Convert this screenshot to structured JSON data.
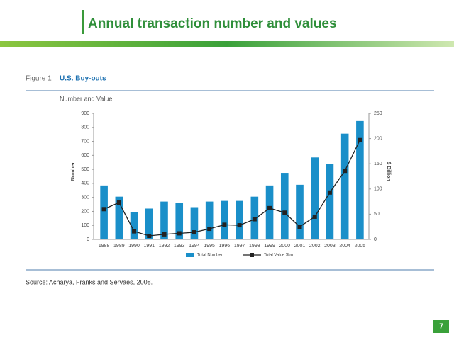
{
  "slide_title": "Annual transaction number and values",
  "page_number": "7",
  "source": "Source: Acharya, Franks and Servaes, 2008.",
  "chart_data": {
    "type": "bar",
    "figure_label": "Figure 1",
    "title": "U.S. Buy-outs",
    "subtitle": "Number and Value",
    "y_label": "Number",
    "y2_label": "$ Billion",
    "categories": [
      "1988",
      "1989",
      "1990",
      "1991",
      "1992",
      "1993",
      "1994",
      "1995",
      "1996",
      "1997",
      "1998",
      "1999",
      "2000",
      "2001",
      "2002",
      "2003",
      "2004",
      "2005"
    ],
    "series": [
      {
        "name": "Total Number",
        "color": "#1a8fc9",
        "values": [
          385,
          305,
          195,
          220,
          270,
          260,
          230,
          270,
          275,
          275,
          305,
          385,
          475,
          390,
          585,
          540,
          755,
          845
        ]
      },
      {
        "name": "Total Value $bn",
        "color": "#222222",
        "axis": "y2",
        "values": [
          60,
          73,
          16,
          7,
          10,
          12,
          14,
          21,
          29,
          28,
          40,
          62,
          53,
          25,
          45,
          93,
          136,
          197
        ]
      }
    ],
    "ylim": [
      0,
      900
    ],
    "yticks": [
      0,
      100,
      200,
      300,
      400,
      500,
      600,
      700,
      800,
      900
    ],
    "y2lim": [
      0,
      250
    ],
    "y2ticks": [
      0,
      50,
      100,
      150,
      200,
      250
    ]
  }
}
